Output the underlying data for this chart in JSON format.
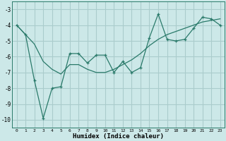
{
  "xlabel": "Humidex (Indice chaleur)",
  "bg_color": "#cce8e8",
  "grid_color": "#aacccc",
  "line_color": "#2a7a6a",
  "xlim": [
    -0.5,
    23.5
  ],
  "ylim": [
    -10.5,
    -2.5
  ],
  "xticks": [
    0,
    1,
    2,
    3,
    4,
    5,
    6,
    7,
    8,
    9,
    10,
    11,
    12,
    13,
    14,
    15,
    16,
    17,
    18,
    19,
    20,
    21,
    22,
    23
  ],
  "yticks": [
    -10,
    -9,
    -8,
    -7,
    -6,
    -5,
    -4,
    -3
  ],
  "zigzag_x": [
    0,
    1,
    2,
    3,
    4,
    5,
    6,
    7,
    8,
    9,
    10,
    11,
    12,
    13,
    14,
    15,
    16,
    17,
    18,
    19,
    20,
    21,
    22,
    23
  ],
  "zigzag_y": [
    -4.0,
    -4.6,
    -7.5,
    -9.9,
    -8.0,
    -7.9,
    -5.8,
    -5.8,
    -6.4,
    -5.9,
    -5.9,
    -7.0,
    -6.3,
    -7.0,
    -6.7,
    -4.8,
    -3.3,
    -4.9,
    -5.0,
    -4.9,
    -4.2,
    -3.5,
    -3.6,
    -4.0
  ],
  "trend_x": [
    0,
    2,
    3,
    4,
    5,
    6,
    7,
    8,
    9,
    10,
    11,
    12,
    13,
    14,
    15,
    16,
    17,
    18,
    19,
    20,
    21,
    22,
    23
  ],
  "trend_y": [
    -4.0,
    -5.2,
    -6.3,
    -6.8,
    -7.1,
    -6.5,
    -6.5,
    -6.8,
    -7.0,
    -7.0,
    -6.8,
    -6.5,
    -6.2,
    -5.8,
    -5.3,
    -4.9,
    -4.6,
    -4.4,
    -4.2,
    -4.0,
    -3.8,
    -3.7,
    -3.6
  ]
}
